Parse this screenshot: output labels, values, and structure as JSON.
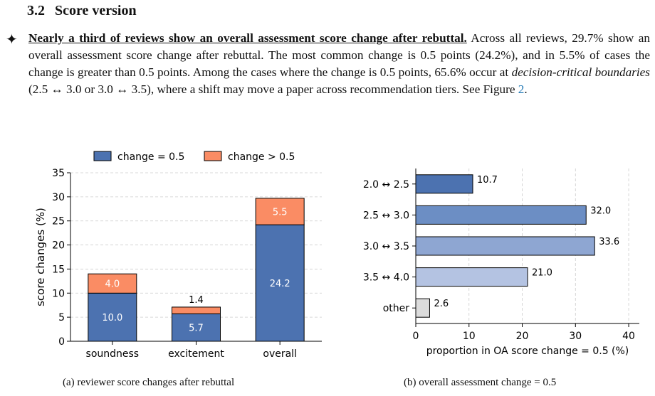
{
  "section": {
    "number": "3.2",
    "title": "Score version"
  },
  "paragraph": {
    "bullet": "✦",
    "lead": "Nearly a third of reviews show an overall assessment score change after rebuttal.",
    "text1": " Across all reviews, 29.7% show an overall assessment score change after rebuttal. The most common change is 0.5 points (24.2%), and in 5.5% of cases the change is greater than 0.5 points. Among the cases where the change is 0.5 points, 65.6% occur at ",
    "italic": "decision-critical boundaries",
    "text2": " (2.5 ↔ 3.0 or 3.0 ↔ 3.5), where a shift may move a paper across recommendation tiers. See Figure ",
    "figure_ref": "2",
    "text3": "."
  },
  "captions": {
    "a": "(a) reviewer score changes after rebuttal",
    "b": "(b) overall assessment change = 0.5"
  },
  "colors": {
    "change_eq": "#4c72b0",
    "change_gt": "#fa8c64",
    "bars_b": [
      "#4c72b0",
      "#6c8ec4",
      "#8ea6d2",
      "#b4c3e2",
      "#dcdcdc"
    ]
  },
  "chart_data": [
    {
      "type": "bar",
      "stacked": true,
      "categories": [
        "soundness",
        "excitement",
        "overall"
      ],
      "series": [
        {
          "name": "change = 0.5",
          "values": [
            10.0,
            5.7,
            24.2
          ],
          "labels": [
            "10.0",
            "5.7",
            "24.2"
          ]
        },
        {
          "name": "change > 0.5",
          "values": [
            4.0,
            1.4,
            5.5
          ],
          "labels": [
            "4.0",
            "1.4",
            "5.5"
          ]
        }
      ],
      "ylabel": "score changes (%)",
      "ylim": [
        0,
        35
      ],
      "yticks": [
        0,
        5,
        10,
        15,
        20,
        25,
        30,
        35
      ],
      "grid": true,
      "legend": "top"
    },
    {
      "type": "bar",
      "orientation": "horizontal",
      "categories": [
        "2.0 ↔ 2.5",
        "2.5 ↔ 3.0",
        "3.0 ↔ 3.5",
        "3.5 ↔ 4.0",
        "other"
      ],
      "values": [
        10.7,
        32.0,
        33.6,
        21.0,
        2.6
      ],
      "labels": [
        "10.7",
        "32.0",
        "33.6",
        "21.0",
        "2.6"
      ],
      "xlabel": "proportion in OA score change = 0.5 (%)",
      "xlim": [
        0,
        42
      ],
      "xticks": [
        0,
        10,
        20,
        30,
        40
      ],
      "grid": true
    }
  ]
}
